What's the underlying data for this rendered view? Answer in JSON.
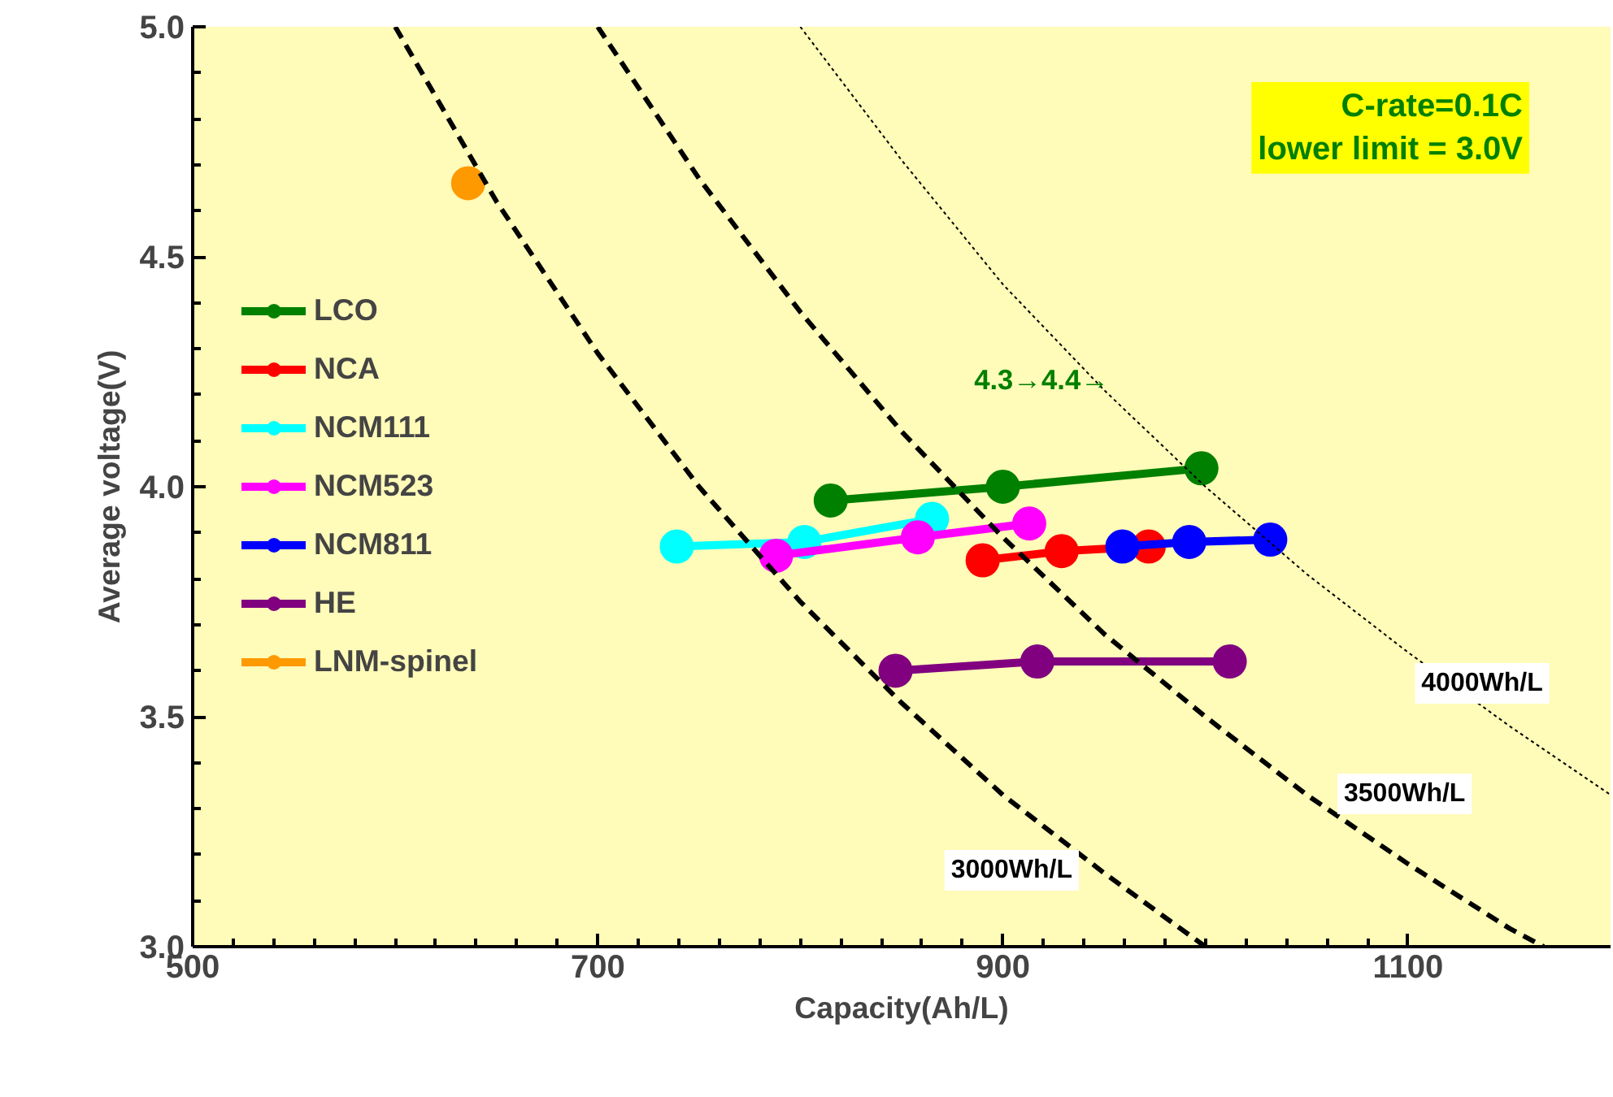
{
  "chart_data": {
    "type": "line",
    "xlabel": "Capacity(Ah/L)",
    "ylabel": "Average voltage(V)",
    "xlim": [
      500,
      1200
    ],
    "ylim": [
      3.0,
      5.0
    ],
    "xticks": [
      500,
      700,
      900,
      1100
    ],
    "yticks": [
      {
        "value": 3,
        "label": "3.0"
      },
      3.5,
      {
        "value": 4,
        "label": "4.0"
      },
      4.5,
      {
        "value": 5,
        "label": "5.0"
      }
    ],
    "grid": false,
    "legend": "left",
    "marker": "circle",
    "line_style": "solid",
    "series": [
      {
        "name": "LCO",
        "color": "#008000",
        "x": [
          815,
          900,
          998
        ],
        "values": [
          3.97,
          4.0,
          4.04
        ]
      },
      {
        "name": "NCA",
        "color": "#ff0000",
        "x": [
          890,
          929,
          972
        ],
        "values": [
          3.84,
          3.86,
          3.87
        ]
      },
      {
        "name": "NCM111",
        "color": "#00ffff",
        "x": [
          739,
          802,
          865
        ],
        "values": [
          3.87,
          3.88,
          3.93
        ]
      },
      {
        "name": "NCM523",
        "color": "#ff00ff",
        "x": [
          788,
          858,
          913
        ],
        "values": [
          3.85,
          3.89,
          3.92
        ]
      },
      {
        "name": "NCM811",
        "color": "#0000ff",
        "x": [
          959,
          992,
          1032
        ],
        "values": [
          3.87,
          3.88,
          3.885
        ]
      },
      {
        "name": "HE",
        "color": "#800080",
        "x": [
          847,
          917,
          1012
        ],
        "values": [
          3.6,
          3.62,
          3.62
        ]
      },
      {
        "name": "LNM-spinel",
        "color": "#ff9900",
        "x": [
          636
        ],
        "values": [
          4.66
        ]
      },
      {
        "color": "#000000",
        "marker": "none",
        "line_style": "dashed",
        "x": [
          600,
          650,
          700,
          750,
          800,
          850,
          900,
          950,
          1000
        ],
        "values": [
          5.0,
          4.62,
          4.29,
          4.0,
          3.75,
          3.53,
          3.33,
          3.16,
          3.0
        ]
      },
      {
        "color": "#000000",
        "marker": "none",
        "line_style": "dashed",
        "x": [
          700,
          750,
          800,
          850,
          900,
          950,
          1000,
          1050,
          1100,
          1150,
          1167
        ],
        "values": [
          5.0,
          4.67,
          4.38,
          4.12,
          3.89,
          3.68,
          3.5,
          3.33,
          3.18,
          3.04,
          3.0
        ]
      },
      {
        "color": "#000000",
        "marker": "none",
        "line_style": "dotted",
        "x": [
          800,
          850,
          900,
          950,
          1000,
          1050,
          1100,
          1150,
          1200
        ],
        "values": [
          5.0,
          4.71,
          4.44,
          4.21,
          4.0,
          3.81,
          3.64,
          3.48,
          3.33
        ]
      }
    ],
    "annotations": [
      "C-rate=0.1C\nlower limit = 3.0V",
      "4.3→4.4→",
      "3000Wh/L",
      "3500Wh/L",
      "4000Wh/L"
    ]
  }
}
